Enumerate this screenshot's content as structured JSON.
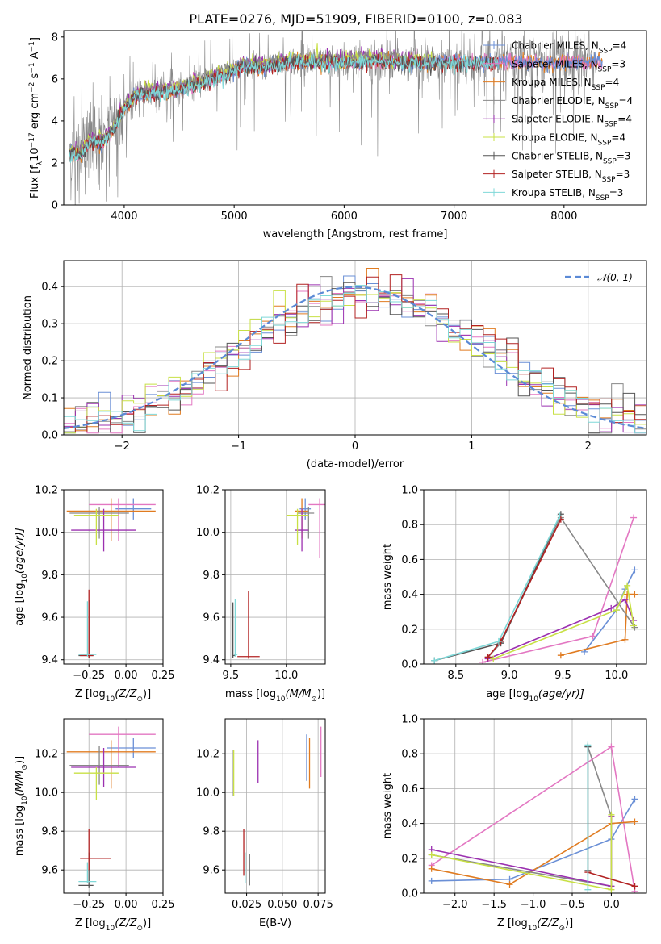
{
  "figure": {
    "title": "PLATE=0276, MJD=51909, FIBERID=0100, z=0.083",
    "colors": {
      "Chabrier MILES": "#6a8fd6",
      "Salpeter MILES": "#e377c2",
      "Kroupa MILES": "#e07b20",
      "Chabrier ELODIE": "#888888",
      "Salpeter ELODIE": "#9b30b0",
      "Kroupa ELODIE": "#c8e045",
      "Chabrier STELIB": "#555555",
      "Salpeter STELIB": "#b22222",
      "Kroupa STELIB": "#7fd8d8",
      "normal": "#5b8ad6"
    }
  },
  "chart_data": [
    {
      "id": "spectrum",
      "type": "line",
      "xlabel": "wavelength [Angstrom, rest frame]",
      "ylabel_parts": [
        "Flux [f",
        "λ",
        "10",
        "−17",
        " erg cm",
        "−2",
        " s",
        "−1",
        " A",
        "−1",
        "]"
      ],
      "xlim": [
        3450,
        8750
      ],
      "ylim": [
        0,
        8.3
      ],
      "xticks": [
        4000,
        5000,
        6000,
        7000,
        8000
      ],
      "yticks": [
        0,
        2,
        4,
        6,
        8
      ],
      "legend_position": "upper right",
      "legend": [
        {
          "label": "Chabrier MILES, N",
          "sub": "SSP",
          "tail": "=4",
          "color_key": "Chabrier MILES"
        },
        {
          "label": "Salpeter MILES, N",
          "sub": "SSP",
          "tail": "=3",
          "color_key": "Salpeter MILES"
        },
        {
          "label": "Kroupa MILES, N",
          "sub": "SSP",
          "tail": "=4",
          "color_key": "Kroupa MILES"
        },
        {
          "label": "Chabrier ELODIE, N",
          "sub": "SSP",
          "tail": "=4",
          "color_key": "Chabrier ELODIE"
        },
        {
          "label": "Salpeter ELODIE, N",
          "sub": "SSP",
          "tail": "=4",
          "color_key": "Salpeter ELODIE"
        },
        {
          "label": "Kroupa ELODIE, N",
          "sub": "SSP",
          "tail": "=4",
          "color_key": "Kroupa ELODIE"
        },
        {
          "label": "Chabrier STELIB, N",
          "sub": "SSP",
          "tail": "=3",
          "color_key": "Chabrier STELIB"
        },
        {
          "label": "Salpeter STELIB, N",
          "sub": "SSP",
          "tail": "=3",
          "color_key": "Salpeter STELIB"
        },
        {
          "label": "Kroupa STELIB, N",
          "sub": "SSP",
          "tail": "=3",
          "color_key": "Kroupa STELIB"
        }
      ],
      "continuum": {
        "x": [
          3500,
          3600,
          3700,
          3800,
          3900,
          4000,
          4100,
          4300,
          4500,
          4700,
          4900,
          5100,
          5300,
          5500,
          5700,
          5900,
          6100,
          6300,
          6500,
          6700,
          6900,
          7100,
          7300,
          7420
        ],
        "y": [
          2.5,
          2.4,
          3.1,
          3.0,
          3.6,
          4.6,
          5.2,
          5.4,
          5.5,
          5.8,
          6.2,
          6.6,
          6.6,
          6.8,
          6.8,
          6.8,
          6.8,
          6.9,
          6.8,
          6.8,
          6.8,
          6.8,
          6.8,
          6.8
        ]
      },
      "models": {
        "x_start": 3500,
        "x_end": {
          "MILES": 8350,
          "ELODIE": 6800,
          "STELIB": 7400
        }
      },
      "observed": {
        "x_start": 3500,
        "x_end": 8300,
        "color_key": "Chabrier ELODIE"
      }
    },
    {
      "id": "residuals",
      "type": "histogram",
      "xlabel": "(data-model)/error",
      "ylabel": "Normed distribution",
      "xlim": [
        -2.5,
        2.5
      ],
      "ylim": [
        0,
        0.47
      ],
      "xticks": [
        -2,
        -1,
        0,
        1,
        2
      ],
      "yticks": [
        0.0,
        0.1,
        0.2,
        0.3,
        0.4
      ],
      "grid": true,
      "bin_width": 0.1,
      "legend_position": "upper right",
      "normal_curve": {
        "label": "𝒩(0, 1)",
        "mean": 0,
        "sigma": 1
      }
    },
    {
      "id": "age_Z",
      "type": "scatter",
      "xlabel_parts": [
        "Z [log",
        "10",
        "(Z/Z",
        "⊙",
        ")]"
      ],
      "ylabel_parts": [
        "age  [log",
        "10",
        "(age/yr)]"
      ],
      "xlim": [
        -0.42,
        0.25
      ],
      "ylim": [
        9.38,
        10.2
      ],
      "xticks": [
        -0.25,
        0.0,
        0.25
      ],
      "yticks": [
        9.4,
        9.6,
        9.8,
        10.0,
        10.2
      ],
      "grid": true,
      "points": [
        {
          "key": "Chabrier MILES",
          "x": 0.05,
          "y": 10.11,
          "xerr": [
            0.12,
            0.12
          ],
          "yerr": [
            0.05,
            0.05
          ]
        },
        {
          "key": "Salpeter MILES",
          "x": -0.05,
          "y": 10.13,
          "xerr": [
            0.2,
            0.25
          ],
          "yerr": [
            0.17,
            0.03
          ]
        },
        {
          "key": "Kroupa MILES",
          "x": -0.1,
          "y": 10.1,
          "xerr": [
            0.3,
            0.3
          ],
          "yerr": [
            0.14,
            0.06
          ]
        },
        {
          "key": "Chabrier ELODIE",
          "x": -0.18,
          "y": 10.09,
          "xerr": [
            0.2,
            0.2
          ],
          "yerr": [
            0.12,
            0.03
          ]
        },
        {
          "key": "Salpeter ELODIE",
          "x": -0.15,
          "y": 10.01,
          "xerr": [
            0.22,
            0.22
          ],
          "yerr": [
            0.1,
            0.1
          ]
        },
        {
          "key": "Kroupa ELODIE",
          "x": -0.2,
          "y": 10.08,
          "xerr": [
            0.15,
            0.15
          ],
          "yerr": [
            0.14,
            0.03
          ]
        },
        {
          "key": "Chabrier STELIB",
          "x": -0.25,
          "y": 9.42,
          "xerr": [
            0.07,
            0.03
          ],
          "yerr": [
            0.01,
            0.26
          ]
        },
        {
          "key": "Salpeter STELIB",
          "x": -0.25,
          "y": 9.42,
          "xerr": [
            0.06,
            0.03
          ],
          "yerr": [
            0.01,
            0.31
          ]
        },
        {
          "key": "Kroupa STELIB",
          "x": -0.26,
          "y": 9.425,
          "xerr": [
            0.06,
            0.06
          ],
          "yerr": [
            0.01,
            0.25
          ]
        }
      ]
    },
    {
      "id": "age_mass",
      "type": "scatter",
      "xlabel_parts": [
        "mass [log",
        "10",
        "(M/M",
        "⊙",
        ")]"
      ],
      "xlim": [
        9.45,
        10.35
      ],
      "ylim": [
        9.38,
        10.2
      ],
      "xticks": [
        9.5,
        10.0
      ],
      "yticks": [
        9.4,
        9.6,
        9.8,
        10.0,
        10.2
      ],
      "grid": true,
      "points": [
        {
          "key": "Chabrier MILES",
          "x": 10.17,
          "y": 10.11,
          "xerr": [
            0.05,
            0.05
          ],
          "yerr": [
            0.05,
            0.05
          ]
        },
        {
          "key": "Salpeter MILES",
          "x": 10.3,
          "y": 10.13,
          "xerr": [
            0.1,
            0.05
          ],
          "yerr": [
            0.25,
            0.03
          ]
        },
        {
          "key": "Kroupa MILES",
          "x": 10.14,
          "y": 10.1,
          "xerr": [
            0.06,
            0.06
          ],
          "yerr": [
            0.13,
            0.06
          ]
        },
        {
          "key": "Chabrier ELODIE",
          "x": 10.2,
          "y": 10.09,
          "xerr": [
            0.1,
            0.05
          ],
          "yerr": [
            0.12,
            0.03
          ]
        },
        {
          "key": "Salpeter ELODIE",
          "x": 10.14,
          "y": 10.01,
          "xerr": [
            0.06,
            0.06
          ],
          "yerr": [
            0.1,
            0.1
          ]
        },
        {
          "key": "Kroupa ELODIE",
          "x": 10.1,
          "y": 10.08,
          "xerr": [
            0.1,
            0.1
          ],
          "yerr": [
            0.14,
            0.03
          ]
        },
        {
          "key": "Chabrier STELIB",
          "x": 9.52,
          "y": 9.42,
          "xerr": [
            0.01,
            0.03
          ],
          "yerr": [
            0.01,
            0.25
          ]
        },
        {
          "key": "Salpeter STELIB",
          "x": 9.66,
          "y": 9.415,
          "xerr": [
            0.1,
            0.1
          ],
          "yerr": [
            0.01,
            0.31
          ]
        },
        {
          "key": "Kroupa STELIB",
          "x": 9.54,
          "y": 9.425,
          "xerr": [
            0.01,
            0.02
          ],
          "yerr": [
            0.01,
            0.26
          ]
        }
      ]
    },
    {
      "id": "weight_age",
      "type": "line",
      "xlabel_parts": [
        "age  [log",
        "10",
        "(age/yr)]"
      ],
      "ylabel": "mass weight",
      "xlim": [
        8.2,
        10.28
      ],
      "ylim": [
        0,
        1.0
      ],
      "xticks": [
        8.5,
        9.0,
        9.5,
        10.0
      ],
      "yticks": [
        0.0,
        0.2,
        0.4,
        0.6,
        0.8,
        1.0
      ],
      "grid": true,
      "series": [
        {
          "key": "Chabrier MILES",
          "x": [
            9.7,
            10.0,
            10.08,
            10.17
          ],
          "y": [
            0.07,
            0.31,
            0.43,
            0.54
          ]
        },
        {
          "key": "Salpeter MILES",
          "x": [
            8.75,
            9.78,
            10.16
          ],
          "y": [
            0.01,
            0.16,
            0.84
          ]
        },
        {
          "key": "Kroupa MILES",
          "x": [
            9.48,
            10.08,
            10.1,
            10.17
          ],
          "y": [
            0.05,
            0.14,
            0.4,
            0.4
          ]
        },
        {
          "key": "Chabrier ELODIE",
          "x": [
            8.8,
            8.92,
            9.48,
            10.17
          ],
          "y": [
            0.04,
            0.12,
            0.84,
            0.21
          ]
        },
        {
          "key": "Salpeter ELODIE",
          "x": [
            8.8,
            9.95,
            10.08,
            10.16
          ],
          "y": [
            0.03,
            0.32,
            0.37,
            0.25
          ]
        },
        {
          "key": "Kroupa ELODIE",
          "x": [
            8.85,
            10.0,
            10.1,
            10.16
          ],
          "y": [
            0.03,
            0.31,
            0.45,
            0.22
          ]
        },
        {
          "key": "Chabrier STELIB",
          "x": [
            8.3,
            8.92,
            9.48
          ],
          "y": [
            0.02,
            0.12,
            0.86
          ]
        },
        {
          "key": "Salpeter STELIB",
          "x": [
            8.8,
            8.92,
            9.48
          ],
          "y": [
            0.04,
            0.13,
            0.83
          ]
        },
        {
          "key": "Kroupa STELIB",
          "x": [
            8.3,
            8.9,
            9.47
          ],
          "y": [
            0.02,
            0.13,
            0.85
          ]
        }
      ]
    },
    {
      "id": "mass_Z",
      "type": "scatter",
      "xlabel_parts": [
        "Z [log",
        "10",
        "(Z/Z",
        "⊙",
        ")]"
      ],
      "ylabel_parts": [
        "mass [log",
        "10",
        "(M/M",
        "⊙",
        ")]"
      ],
      "xlim": [
        -0.42,
        0.25
      ],
      "ylim": [
        9.48,
        10.38
      ],
      "xticks": [
        -0.25,
        0.0,
        0.25
      ],
      "yticks": [
        9.6,
        9.8,
        10.0,
        10.2
      ],
      "grid": true,
      "points": [
        {
          "key": "Chabrier MILES",
          "x": 0.05,
          "y": 10.23,
          "xerr": [
            0.18,
            0.15
          ],
          "yerr": [
            0.05,
            0.05
          ]
        },
        {
          "key": "Salpeter MILES",
          "x": -0.05,
          "y": 10.3,
          "xerr": [
            0.2,
            0.25
          ],
          "yerr": [
            0.17,
            0.04
          ]
        },
        {
          "key": "Kroupa MILES",
          "x": -0.1,
          "y": 10.21,
          "xerr": [
            0.3,
            0.3
          ],
          "yerr": [
            0.19,
            0.06
          ]
        },
        {
          "key": "Chabrier ELODIE",
          "x": -0.18,
          "y": 10.14,
          "xerr": [
            0.2,
            0.2
          ],
          "yerr": [
            0.1,
            0.1
          ]
        },
        {
          "key": "Salpeter ELODIE",
          "x": -0.15,
          "y": 10.13,
          "xerr": [
            0.22,
            0.22
          ],
          "yerr": [
            0.1,
            0.1
          ]
        },
        {
          "key": "Kroupa ELODIE",
          "x": -0.2,
          "y": 10.1,
          "xerr": [
            0.15,
            0.15
          ],
          "yerr": [
            0.14,
            0.03
          ]
        },
        {
          "key": "Chabrier STELIB",
          "x": -0.25,
          "y": 9.52,
          "xerr": [
            0.07,
            0.03
          ],
          "yerr": [
            0.01,
            0.17
          ]
        },
        {
          "key": "Salpeter STELIB",
          "x": -0.25,
          "y": 9.66,
          "xerr": [
            0.06,
            0.15
          ],
          "yerr": [
            0.06,
            0.15
          ]
        },
        {
          "key": "Kroupa STELIB",
          "x": -0.26,
          "y": 9.54,
          "xerr": [
            0.06,
            0.06
          ],
          "yerr": [
            0.01,
            0.1
          ]
        }
      ]
    },
    {
      "id": "mass_ebv",
      "type": "scatter",
      "xlabel": "E(B-V)",
      "xlim": [
        0.01,
        0.08
      ],
      "ylim": [
        9.48,
        10.38
      ],
      "xticks": [
        0.025,
        0.05,
        0.075
      ],
      "yticks": [
        9.6,
        9.8,
        10.0,
        10.2
      ],
      "grid": true,
      "points": [
        {
          "key": "Chabrier MILES",
          "x": 0.067,
          "y": 10.18,
          "xerr": [
            0,
            0
          ],
          "yerr": [
            0.12,
            0.12
          ]
        },
        {
          "key": "Salpeter MILES",
          "x": 0.077,
          "y": 10.21,
          "xerr": [
            0,
            0
          ],
          "yerr": [
            0.13,
            0.13
          ]
        },
        {
          "key": "Kroupa MILES",
          "x": 0.069,
          "y": 10.15,
          "xerr": [
            0,
            0
          ],
          "yerr": [
            0.13,
            0.13
          ]
        },
        {
          "key": "Chabrier ELODIE",
          "x": 0.015,
          "y": 10.1,
          "xerr": [
            0,
            0
          ],
          "yerr": [
            0.12,
            0.12
          ]
        },
        {
          "key": "Salpeter ELODIE",
          "x": 0.033,
          "y": 10.16,
          "xerr": [
            0,
            0
          ],
          "yerr": [
            0.11,
            0.11
          ]
        },
        {
          "key": "Kroupa ELODIE",
          "x": 0.016,
          "y": 10.1,
          "xerr": [
            0,
            0
          ],
          "yerr": [
            0.12,
            0.12
          ]
        },
        {
          "key": "Chabrier STELIB",
          "x": 0.027,
          "y": 9.6,
          "xerr": [
            0,
            0
          ],
          "yerr": [
            0.08,
            0.08
          ]
        },
        {
          "key": "Salpeter STELIB",
          "x": 0.023,
          "y": 9.69,
          "xerr": [
            0,
            0
          ],
          "yerr": [
            0.12,
            0.12
          ]
        },
        {
          "key": "Kroupa STELIB",
          "x": 0.024,
          "y": 9.61,
          "xerr": [
            0,
            0
          ],
          "yerr": [
            0.08,
            0.08
          ]
        }
      ]
    },
    {
      "id": "weight_Z",
      "type": "line",
      "xlabel_parts": [
        "Z [log",
        "10",
        "(Z/Z",
        "⊙",
        ")]"
      ],
      "ylabel": "mass weight",
      "xlim": [
        -2.4,
        0.45
      ],
      "ylim": [
        0,
        1.0
      ],
      "xticks": [
        -2.0,
        -1.5,
        -1.0,
        -0.5,
        0.0
      ],
      "yticks": [
        0.0,
        0.2,
        0.4,
        0.6,
        0.8,
        1.0
      ],
      "grid": true,
      "series": [
        {
          "key": "Chabrier MILES",
          "x": [
            -2.3,
            -1.3,
            0.0,
            0.3
          ],
          "y": [
            0.07,
            0.08,
            0.31,
            0.54
          ]
        },
        {
          "key": "Salpeter MILES",
          "x": [
            -2.3,
            0.0,
            0.3
          ],
          "y": [
            0.16,
            0.84,
            0.01
          ]
        },
        {
          "key": "Kroupa MILES",
          "x": [
            -2.3,
            -1.3,
            0.0,
            0.3
          ],
          "y": [
            0.14,
            0.05,
            0.4,
            0.41
          ]
        },
        {
          "key": "Chabrier ELODIE",
          "x": [
            -2.3,
            0.0,
            0.0,
            -0.3
          ],
          "y": [
            0.22,
            0.04,
            0.44,
            0.84
          ]
        },
        {
          "key": "Salpeter ELODIE",
          "x": [
            -2.3,
            0.0,
            0.0
          ],
          "y": [
            0.25,
            0.04,
            0.44
          ]
        },
        {
          "key": "Kroupa ELODIE",
          "x": [
            -2.3,
            0.0,
            0.0
          ],
          "y": [
            0.22,
            0.02,
            0.45
          ]
        },
        {
          "key": "Chabrier STELIB",
          "x": [
            -0.3,
            -0.3
          ],
          "y": [
            0.13,
            0.84
          ]
        },
        {
          "key": "Salpeter STELIB",
          "x": [
            -0.3,
            0.3,
            0.3
          ],
          "y": [
            0.12,
            0.04,
            0.04
          ]
        },
        {
          "key": "Kroupa STELIB",
          "x": [
            -0.3,
            -0.3
          ],
          "y": [
            0.02,
            0.85
          ]
        }
      ]
    }
  ]
}
